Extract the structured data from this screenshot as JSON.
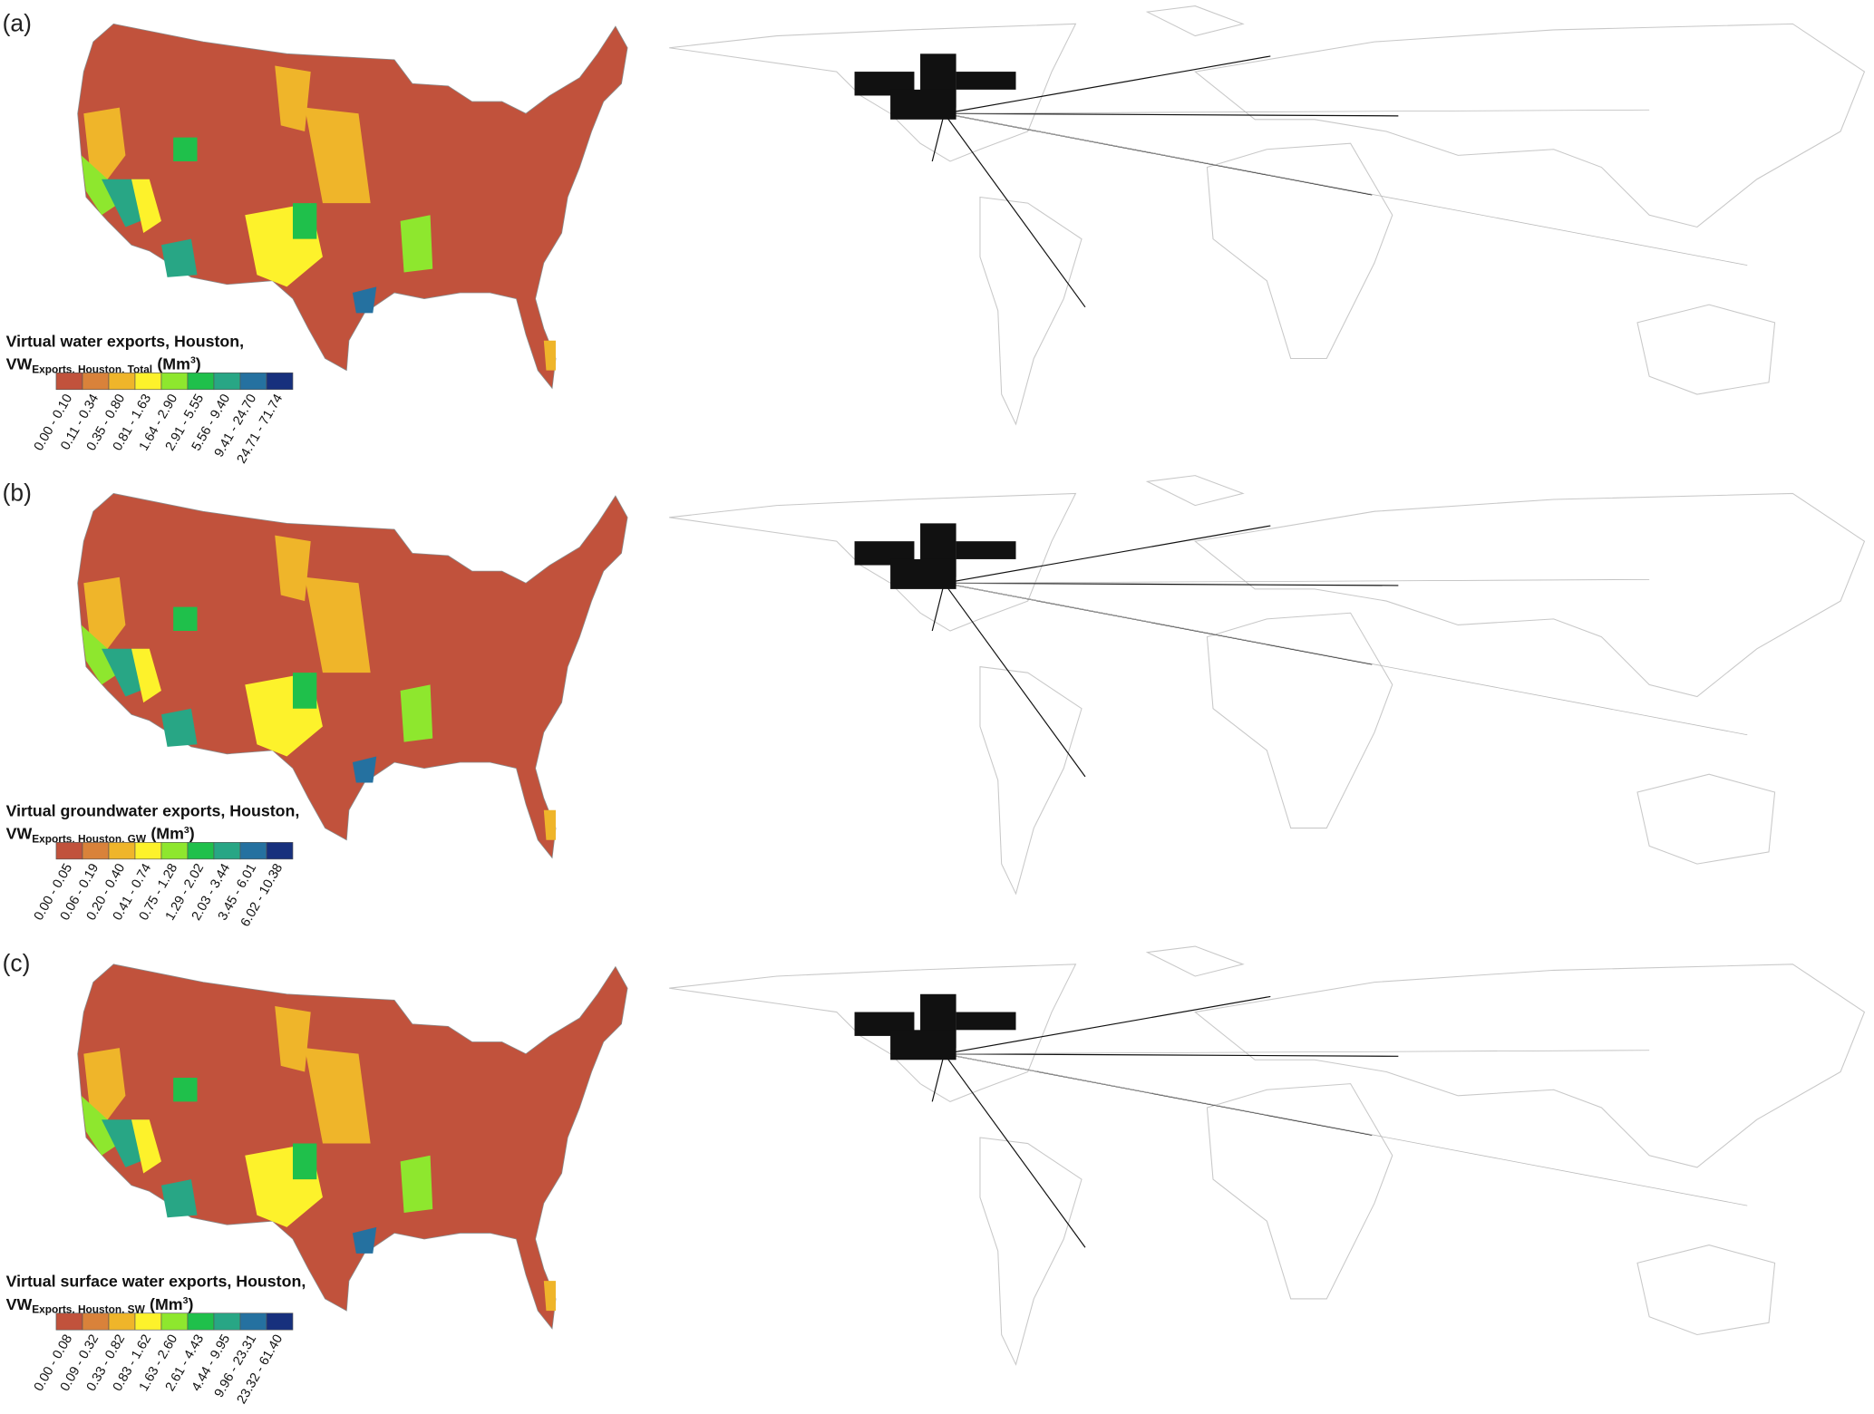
{
  "panels": [
    {
      "label": "(a)",
      "title": {
        "line1": "Virtual water exports, Houston,",
        "vw": "VW",
        "sub": "Exports, Houston, Total",
        "unit_open": "(Mm",
        "sup": "3",
        "unit_close": ")"
      },
      "legend": {
        "colors": [
          "#c1523c",
          "#d9823a",
          "#efb52a",
          "#fdf22b",
          "#8ee72e",
          "#1fc04b",
          "#28a685",
          "#2571a0",
          "#17307d"
        ],
        "labels": [
          "0.00 - 0.10",
          "0.11 - 0.34",
          "0.35 - 0.80",
          "0.81 - 1.63",
          "1.64 - 2.90",
          "2.91 - 5.55",
          "5.56 - 9.40",
          "9.41 - 24.70",
          "24.71 - 71.74"
        ]
      }
    },
    {
      "label": "(b)",
      "title": {
        "line1": "Virtual groundwater exports, Houston,",
        "vw": "VW",
        "sub": "Exports, Houston, GW",
        "unit_open": "(Mm",
        "sup": "3",
        "unit_close": ")"
      },
      "legend": {
        "colors": [
          "#c1523c",
          "#d9823a",
          "#efb52a",
          "#fdf22b",
          "#8ee72e",
          "#1fc04b",
          "#28a685",
          "#2571a0",
          "#17307d"
        ],
        "labels": [
          "0.00 - 0.05",
          "0.06 - 0.19",
          "0.20 - 0.40",
          "0.41 - 0.74",
          "0.75 - 1.28",
          "1.29 - 2.02",
          "2.03 - 3.44",
          "3.45 - 6.01",
          "6.02 - 10.38"
        ]
      }
    },
    {
      "label": "(c)",
      "title": {
        "line1": "Virtual surface water exports, Houston,",
        "vw": "VW",
        "sub": "Exports, Houston, SW",
        "unit_open": "(Mm",
        "sup": "3",
        "unit_close": ")"
      },
      "legend": {
        "colors": [
          "#c1523c",
          "#d9823a",
          "#efb52a",
          "#fdf22b",
          "#8ee72e",
          "#1fc04b",
          "#28a685",
          "#2571a0",
          "#17307d"
        ],
        "labels": [
          "0.00 - 0.08",
          "0.09 - 0.32",
          "0.33 - 0.82",
          "0.83 - 1.62",
          "1.63 - 2.60",
          "2.61 - 4.43",
          "4.44 - 9.95",
          "9.96 - 23.31",
          "23.32 - 61.40"
        ]
      }
    }
  ]
}
